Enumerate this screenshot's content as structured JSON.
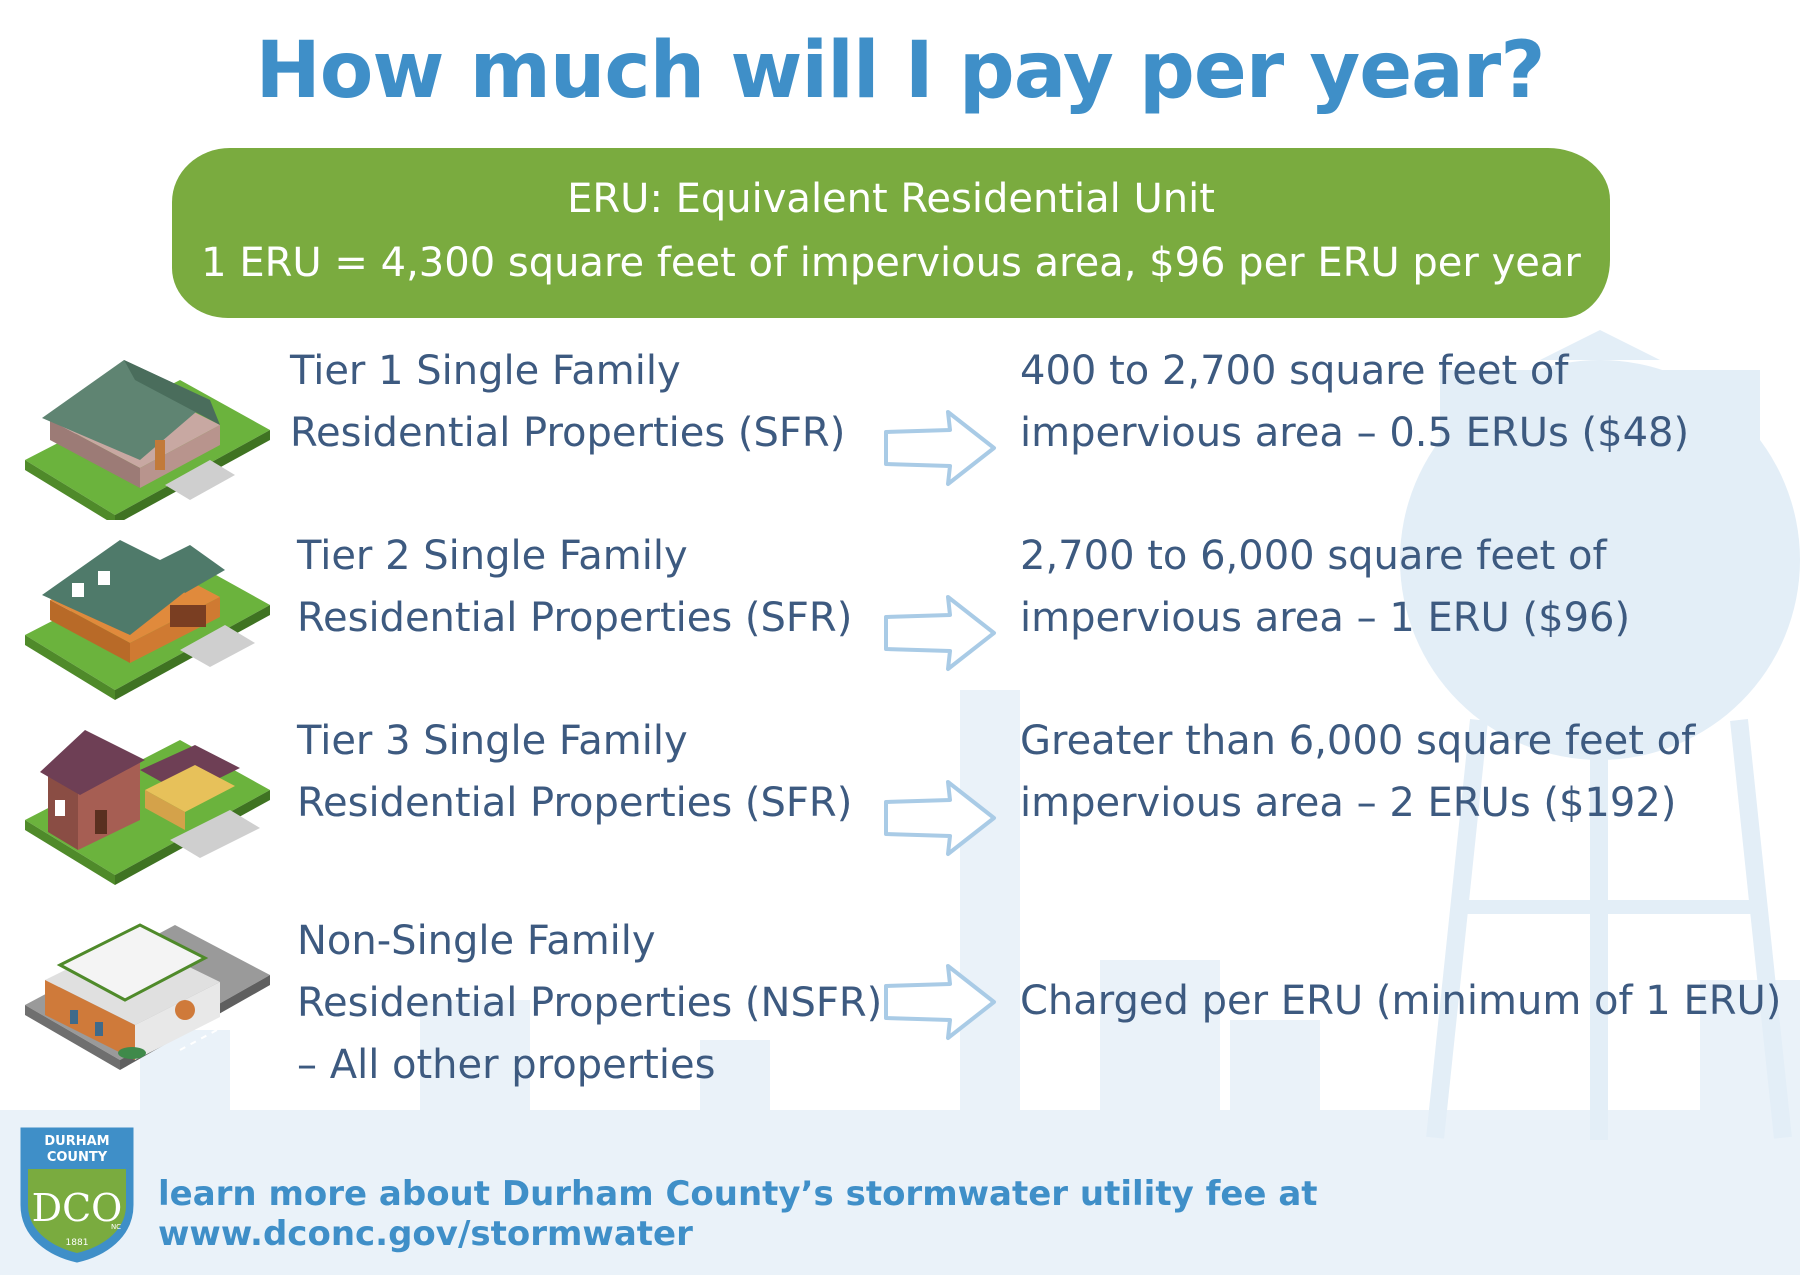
{
  "title": "How much will I pay per year?",
  "eru_banner": {
    "line1": "ERU: Equivalent Residential Unit",
    "line2": "1 ERU = 4,300 square feet of impervious area, $96 per ERU per year"
  },
  "tiers": [
    {
      "label_lines": [
        "Tier 1 Single Family",
        "Residential Properties (SFR)"
      ],
      "value_lines": [
        "400 to 2,700 square feet of",
        "impervious area – 0.5 ERUs ($48)"
      ],
      "icon": "small-house-icon"
    },
    {
      "label_lines": [
        "Tier 2 Single Family",
        "Residential Properties (SFR)"
      ],
      "value_lines": [
        "2,700 to 6,000 square feet of",
        "impervious area – 1 ERU ($96)"
      ],
      "icon": "medium-house-icon"
    },
    {
      "label_lines": [
        "Tier 3 Single Family",
        "Residential Properties (SFR)"
      ],
      "value_lines": [
        "Greater than 6,000 square feet of",
        "impervious area – 2 ERUs ($192)"
      ],
      "icon": "large-house-icon"
    },
    {
      "label_lines": [
        "Non-Single Family",
        "Residential Properties (NSFR)",
        "– All other properties"
      ],
      "value_lines": [
        "Charged per ERU (minimum of 1 ERU)"
      ],
      "icon": "commercial-building-icon"
    }
  ],
  "footer": {
    "logo_lines": [
      "DURHAM",
      "COUNTY"
    ],
    "logo_letters": "DCO",
    "logo_year": "1881",
    "logo_state": "NC",
    "text": "learn more about Durham County’s stormwater utility fee at www.dconc.gov/stormwater"
  },
  "colors": {
    "title": "#3f8fc8",
    "banner": "#7aab3f",
    "body_text": "#3d5a80",
    "arrow_stroke": "#a9cbe6",
    "skyline": "#e6f0f8"
  }
}
